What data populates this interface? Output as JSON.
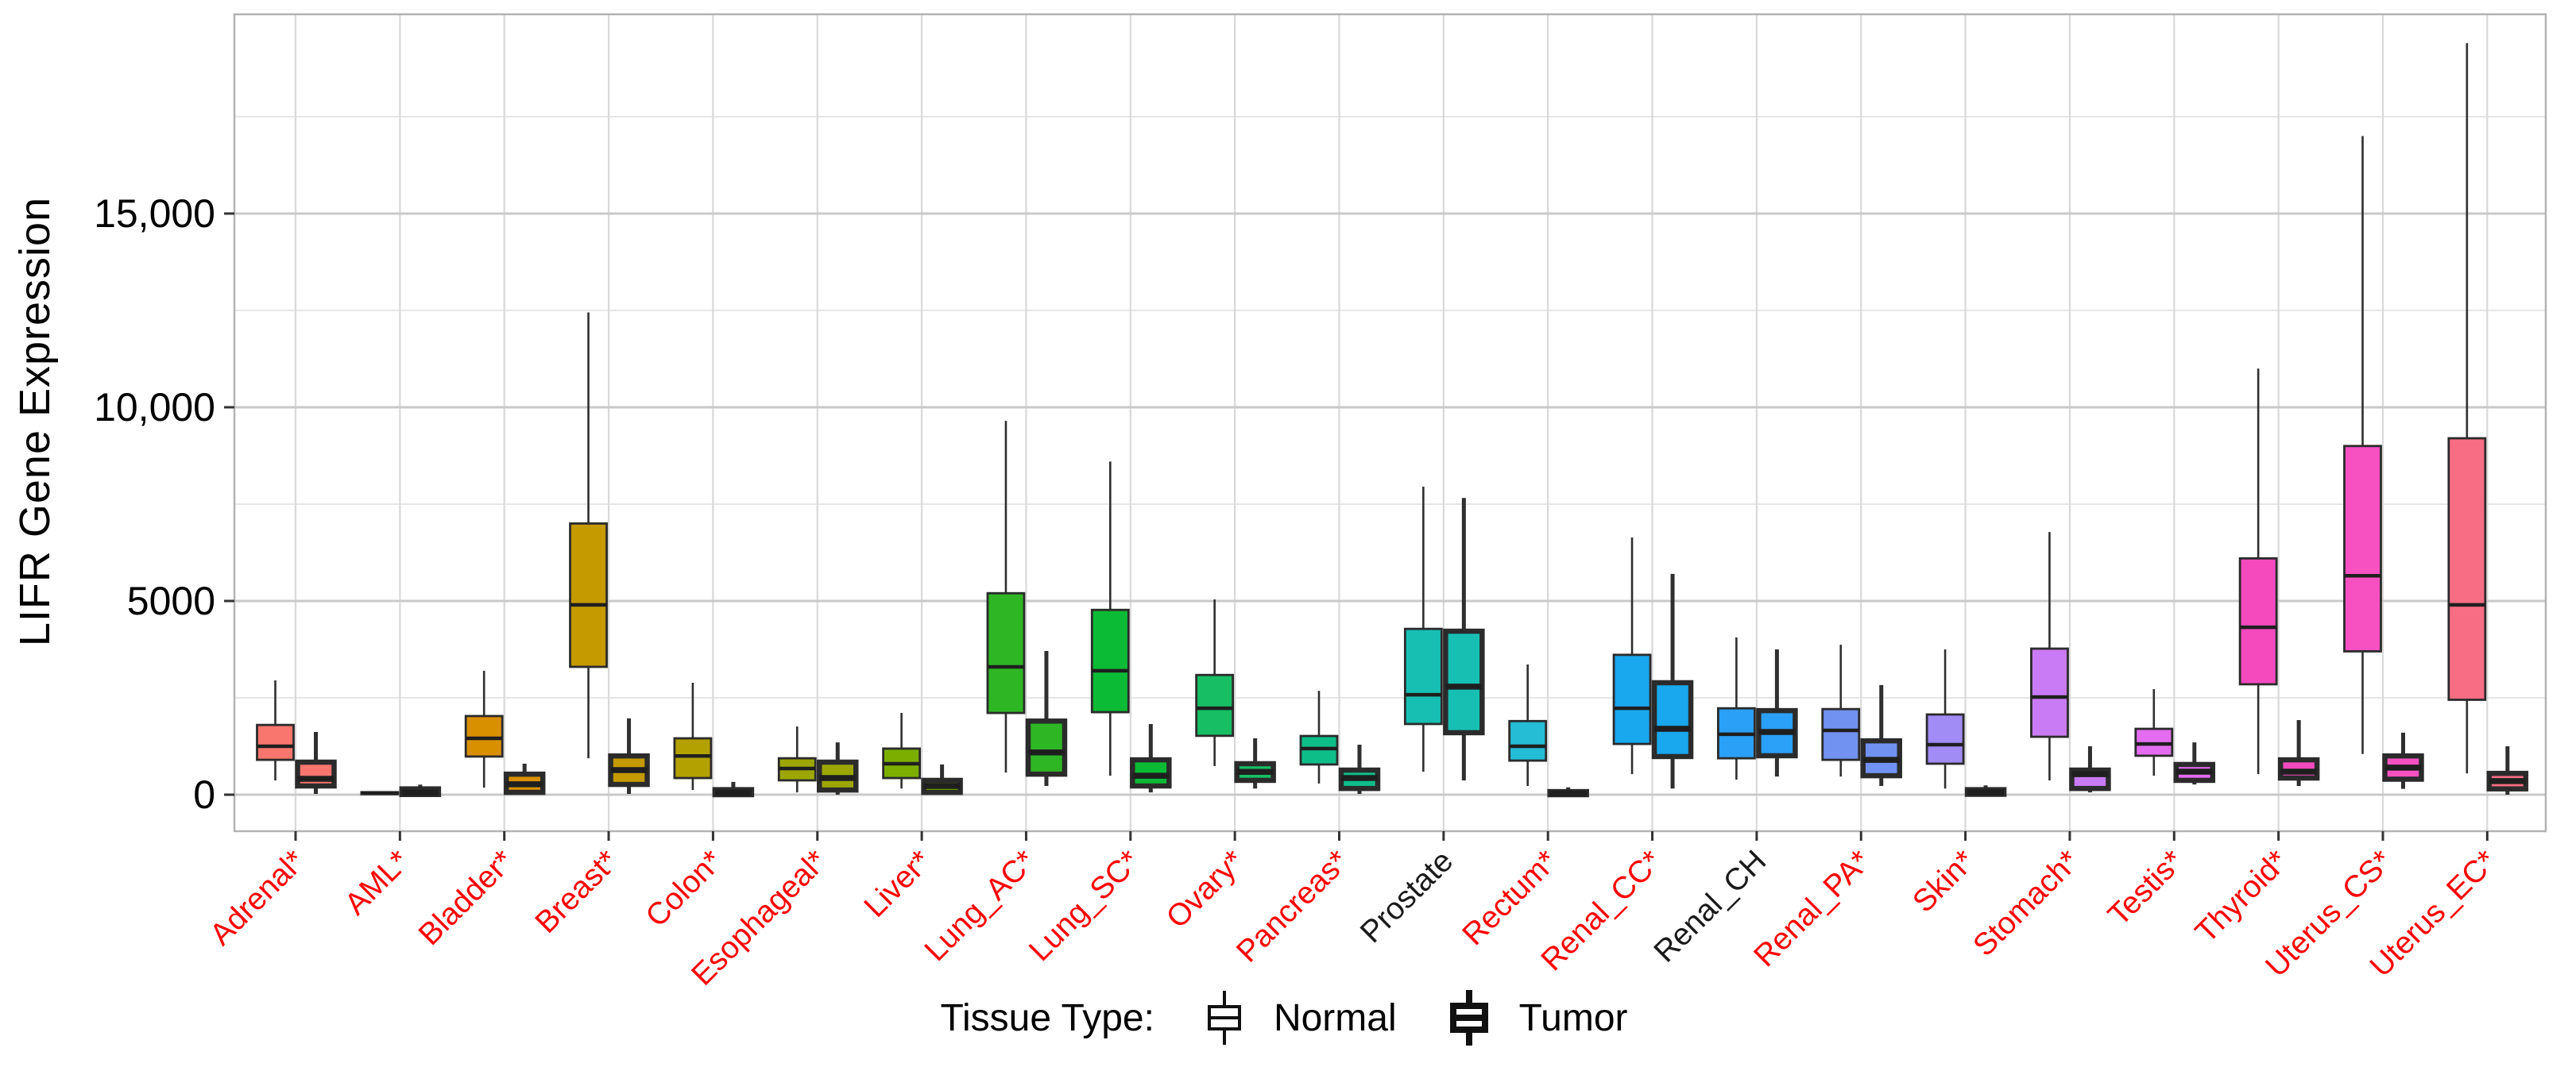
{
  "figure": {
    "y_axis_title": "LIFR Gene Expression",
    "legend": {
      "title": "Tissue Type:",
      "normal_label": "Normal",
      "tumor_label": "Tumor"
    }
  },
  "chart_data": {
    "type": "grouped_boxplot",
    "title": "",
    "xlabel": "",
    "ylabel": "LIFR Gene Expression",
    "ylim": [
      -950,
      20150
    ],
    "grid": true,
    "legend_position": "bottom",
    "series_labels": [
      "Normal",
      "Tumor"
    ],
    "label_colors": {
      "significant": "#fe0000",
      "not_significant": "#1a1a1a"
    },
    "y_major_ticks": [
      {
        "value": 0,
        "label": "0"
      },
      {
        "value": 5000,
        "label": "5000"
      },
      {
        "value": 10000,
        "label": "10,000"
      },
      {
        "value": 15000,
        "label": "15,000"
      }
    ],
    "y_minor_gridlines": [
      2500,
      7500,
      12500,
      17500
    ],
    "categories": [
      {
        "label": "Adrenal*",
        "significant": true,
        "color": "#F8766D",
        "normal": {
          "whisker_low": 370,
          "q1": 900,
          "median": 1250,
          "q3": 1800,
          "whisker_high": 2950
        },
        "tumor": {
          "whisker_low": 20,
          "q1": 225,
          "median": 410,
          "q3": 840,
          "whisker_high": 1620
        }
      },
      {
        "label": "AML*",
        "significant": true,
        "color": "#EA8331",
        "normal": {
          "whisker_low": 0,
          "q1": 15,
          "median": 35,
          "q3": 65,
          "whisker_high": 90
        },
        "tumor": {
          "whisker_low": 0,
          "q1": 5,
          "median": 55,
          "q3": 150,
          "whisker_high": 260
        }
      },
      {
        "label": "Bladder*",
        "significant": true,
        "color": "#D89000",
        "normal": {
          "whisker_low": 180,
          "q1": 985,
          "median": 1455,
          "q3": 2030,
          "whisker_high": 3200
        },
        "tumor": {
          "whisker_low": 0,
          "q1": 60,
          "median": 270,
          "q3": 530,
          "whisker_high": 800
        }
      },
      {
        "label": "Breast*",
        "significant": true,
        "color": "#C49A00",
        "normal": {
          "whisker_low": 940,
          "q1": 3300,
          "median": 4900,
          "q3": 7000,
          "whisker_high": 12450
        },
        "tumor": {
          "whisker_low": 20,
          "q1": 265,
          "median": 635,
          "q3": 1000,
          "whisker_high": 1970
        }
      },
      {
        "label": "Colon*",
        "significant": true,
        "color": "#B2A100",
        "normal": {
          "whisker_low": 120,
          "q1": 430,
          "median": 1000,
          "q3": 1455,
          "whisker_high": 2890
        },
        "tumor": {
          "whisker_low": 0,
          "q1": 0,
          "median": 50,
          "q3": 130,
          "whisker_high": 330
        }
      },
      {
        "label": "Esophageal*",
        "significant": true,
        "color": "#9BA700",
        "normal": {
          "whisker_low": 60,
          "q1": 370,
          "median": 675,
          "q3": 940,
          "whisker_high": 1760
        },
        "tumor": {
          "whisker_low": 0,
          "q1": 120,
          "median": 430,
          "q3": 840,
          "whisker_high": 1350
        }
      },
      {
        "label": "Liver*",
        "significant": true,
        "color": "#7CAE00",
        "normal": {
          "whisker_low": 160,
          "q1": 430,
          "median": 800,
          "q3": 1190,
          "whisker_high": 2110
        },
        "tumor": {
          "whisker_low": 0,
          "q1": 60,
          "median": 225,
          "q3": 370,
          "whisker_high": 780
        }
      },
      {
        "label": "Lung_AC*",
        "significant": true,
        "color": "#2FB625",
        "normal": {
          "whisker_low": 570,
          "q1": 2110,
          "median": 3300,
          "q3": 5200,
          "whisker_high": 9650
        },
        "tumor": {
          "whisker_low": 225,
          "q1": 530,
          "median": 1090,
          "q3": 1900,
          "whisker_high": 3710
        }
      },
      {
        "label": "Lung_SC*",
        "significant": true,
        "color": "#0CBB35",
        "normal": {
          "whisker_low": 490,
          "q1": 2130,
          "median": 3200,
          "q3": 4770,
          "whisker_high": 8600
        },
        "tumor": {
          "whisker_low": 60,
          "q1": 225,
          "median": 490,
          "q3": 900,
          "whisker_high": 1825
        }
      },
      {
        "label": "Ovary*",
        "significant": true,
        "color": "#17BE64",
        "normal": {
          "whisker_low": 740,
          "q1": 1520,
          "median": 2230,
          "q3": 3090,
          "whisker_high": 5040
        },
        "tumor": {
          "whisker_low": 160,
          "q1": 370,
          "median": 590,
          "q3": 800,
          "whisker_high": 1455
        }
      },
      {
        "label": "Pancreas*",
        "significant": true,
        "color": "#0EBE89",
        "normal": {
          "whisker_low": 290,
          "q1": 780,
          "median": 1190,
          "q3": 1515,
          "whisker_high": 2680
        },
        "tumor": {
          "whisker_low": 20,
          "q1": 160,
          "median": 430,
          "q3": 635,
          "whisker_high": 1290
        }
      },
      {
        "label": "Prostate",
        "significant": false,
        "color": "#17BFB3",
        "normal": {
          "whisker_low": 595,
          "q1": 1825,
          "median": 2580,
          "q3": 4280,
          "whisker_high": 7950
        },
        "tumor": {
          "whisker_low": 370,
          "q1": 1600,
          "median": 2790,
          "q3": 4220,
          "whisker_high": 7660
        }
      },
      {
        "label": "Rectum*",
        "significant": true,
        "color": "#25BCD5",
        "normal": {
          "whisker_low": 225,
          "q1": 880,
          "median": 1250,
          "q3": 1900,
          "whisker_high": 3360
        },
        "tumor": {
          "whisker_low": 0,
          "q1": 0,
          "median": 30,
          "q3": 80,
          "whisker_high": 190
        }
      },
      {
        "label": "Renal_CC*",
        "significant": true,
        "color": "#19A7EE",
        "normal": {
          "whisker_low": 530,
          "q1": 1310,
          "median": 2230,
          "q3": 3610,
          "whisker_high": 6640
        },
        "tumor": {
          "whisker_low": 160,
          "q1": 985,
          "median": 1700,
          "q3": 2890,
          "whisker_high": 5700
        }
      },
      {
        "label": "Renal_CH",
        "significant": false,
        "color": "#2AA0F7",
        "normal": {
          "whisker_low": 390,
          "q1": 940,
          "median": 1560,
          "q3": 2230,
          "whisker_high": 4060
        },
        "tumor": {
          "whisker_low": 470,
          "q1": 1005,
          "median": 1620,
          "q3": 2170,
          "whisker_high": 3750
        }
      },
      {
        "label": "Renal_PA*",
        "significant": true,
        "color": "#7292F2",
        "normal": {
          "whisker_low": 470,
          "q1": 900,
          "median": 1660,
          "q3": 2210,
          "whisker_high": 3870
        },
        "tumor": {
          "whisker_low": 225,
          "q1": 490,
          "median": 900,
          "q3": 1390,
          "whisker_high": 2830
        }
      },
      {
        "label": "Skin*",
        "significant": true,
        "color": "#A18CF5",
        "normal": {
          "whisker_low": 160,
          "q1": 800,
          "median": 1290,
          "q3": 2070,
          "whisker_high": 3750
        },
        "tumor": {
          "whisker_low": 0,
          "q1": 10,
          "median": 60,
          "q3": 130,
          "whisker_high": 240
        }
      },
      {
        "label": "Stomach*",
        "significant": true,
        "color": "#C97AF5",
        "normal": {
          "whisker_low": 370,
          "q1": 1495,
          "median": 2520,
          "q3": 3770,
          "whisker_high": 6780
        },
        "tumor": {
          "whisker_low": 60,
          "q1": 160,
          "median": 530,
          "q3": 635,
          "whisker_high": 1250
        }
      },
      {
        "label": "Testis*",
        "significant": true,
        "color": "#E36CF0",
        "normal": {
          "whisker_low": 490,
          "q1": 1005,
          "median": 1310,
          "q3": 1700,
          "whisker_high": 2725
        },
        "tumor": {
          "whisker_low": 265,
          "q1": 370,
          "median": 595,
          "q3": 780,
          "whisker_high": 1350
        }
      },
      {
        "label": "Thyroid*",
        "significant": true,
        "color": "#F44ABE",
        "normal": {
          "whisker_low": 530,
          "q1": 2850,
          "median": 4320,
          "q3": 6100,
          "whisker_high": 11000
        },
        "tumor": {
          "whisker_low": 225,
          "q1": 430,
          "median": 595,
          "q3": 900,
          "whisker_high": 1925
        }
      },
      {
        "label": "Uterus_CS*",
        "significant": true,
        "color": "#F751C1",
        "normal": {
          "whisker_low": 1050,
          "q1": 3700,
          "median": 5650,
          "q3": 9000,
          "whisker_high": 17000
        },
        "tumor": {
          "whisker_low": 150,
          "q1": 400,
          "median": 700,
          "q3": 1000,
          "whisker_high": 1600
        }
      },
      {
        "label": "Uterus_EC*",
        "significant": true,
        "color": "#F96D84",
        "normal": {
          "whisker_low": 550,
          "q1": 2450,
          "median": 4900,
          "q3": 9200,
          "whisker_high": 19400
        },
        "tumor": {
          "whisker_low": 0,
          "q1": 150,
          "median": 350,
          "q3": 550,
          "whisker_high": 1250
        }
      }
    ]
  }
}
